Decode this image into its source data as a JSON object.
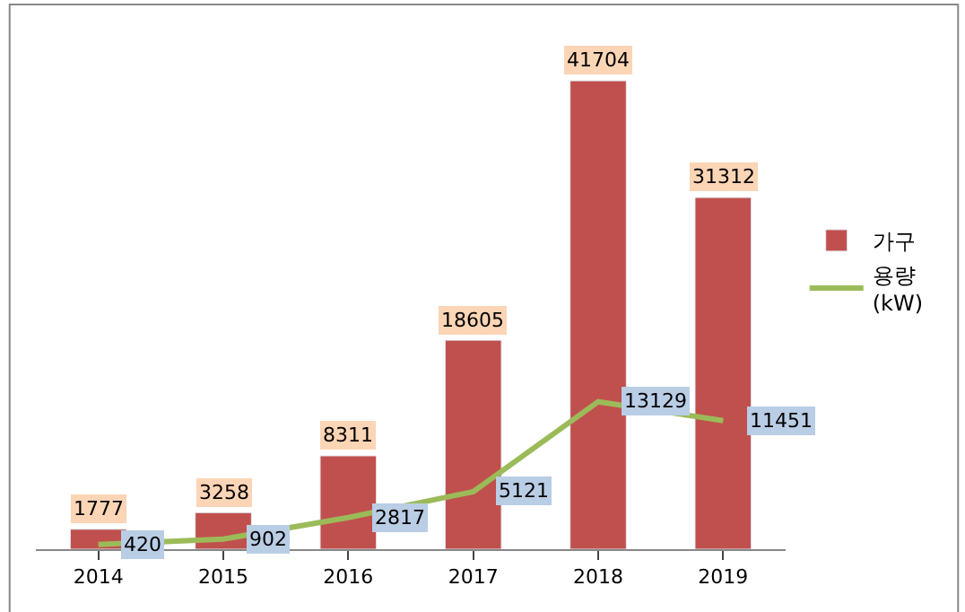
{
  "chart_data": {
    "type": "bar",
    "categories": [
      "2014",
      "2015",
      "2016",
      "2017",
      "2018",
      "2019"
    ],
    "series": [
      {
        "name": "가구",
        "color": "#c0504d",
        "values": [
          1777,
          3258,
          8311,
          18605,
          41704,
          31312
        ]
      },
      {
        "name": "용량\n(kW)",
        "type": "line",
        "color": "#9bbb59",
        "values": [
          420,
          902,
          2817,
          5121,
          13129,
          11451
        ]
      }
    ],
    "data_labels": true,
    "legend": "right",
    "marker": "none"
  }
}
